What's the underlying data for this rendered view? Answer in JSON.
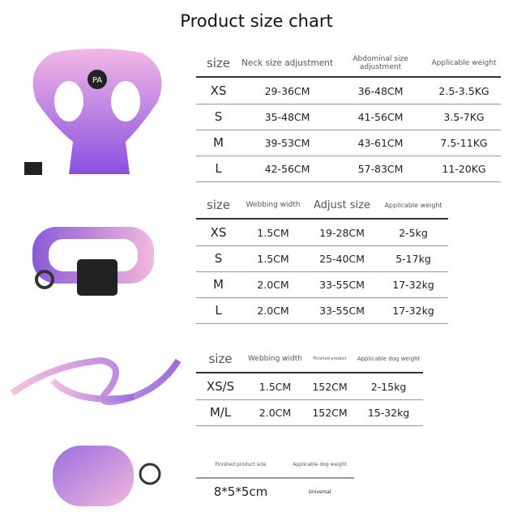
{
  "title": "Product size chart",
  "harness": {
    "headers": [
      "size",
      "Neck size adjustment",
      "Abdominal size adjustment",
      "Applicable weight"
    ],
    "rows": [
      [
        "XS",
        "29-36CM",
        "36-48CM",
        "2.5-3.5KG"
      ],
      [
        "S",
        "35-48CM",
        "41-56CM",
        "3.5-7KG"
      ],
      [
        "M",
        "39-53CM",
        "43-61CM",
        "7.5-11KG"
      ],
      [
        "L",
        "42-56CM",
        "57-83CM",
        "11-20KG"
      ]
    ]
  },
  "collar": {
    "headers": [
      "size",
      "Webbing width",
      "Adjust size",
      "Applicable weight"
    ],
    "rows": [
      [
        "XS",
        "1.5CM",
        "19-28CM",
        "2-5kg"
      ],
      [
        "S",
        "1.5CM",
        "25-40CM",
        "5-17kg"
      ],
      [
        "M",
        "2.0CM",
        "33-55CM",
        "17-32kg"
      ],
      [
        "L",
        "2.0CM",
        "33-55CM",
        "17-32kg"
      ]
    ]
  },
  "leash": {
    "headers": [
      "size",
      "Webbing width",
      "Finished product",
      "Applicable dog weight"
    ],
    "rows": [
      [
        "XS/S",
        "1.5CM",
        "152CM",
        "2-15kg"
      ],
      [
        "M/L",
        "2.0CM",
        "152CM",
        "15-32kg"
      ]
    ]
  },
  "bag": {
    "headers": [
      "Finished product size",
      "Applicable dog weight"
    ],
    "rows": [
      [
        "8*5*5cm",
        "Universal"
      ]
    ]
  },
  "colors": {
    "purple": "#8a5ad8",
    "pink": "#f2b8dc"
  }
}
